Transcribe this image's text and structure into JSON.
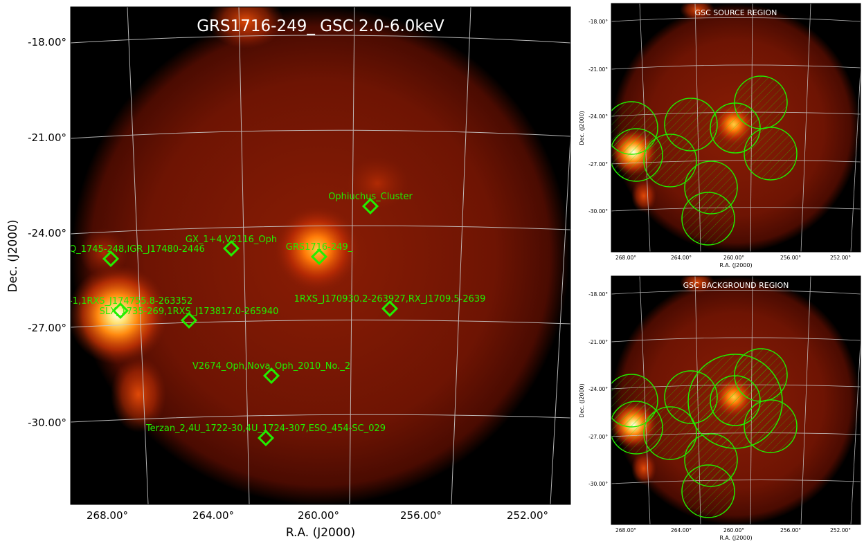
{
  "main": {
    "title": "GRS1716-249_ GSC 2.0-6.0keV",
    "xlabel": "R.A. (J2000)",
    "ylabel": "Dec. (J2000)",
    "xticks": [
      "268.00°",
      "264.00°",
      "260.00°",
      "256.00°",
      "252.00°"
    ],
    "yticks": [
      "-18.00°",
      "-21.00°",
      "-24.00°",
      "-27.00°",
      "-30.00°"
    ],
    "sources": [
      {
        "label": "Ophiuchus_Cluster"
      },
      {
        "label": "GX_1+4,V2116_Oph"
      },
      {
        "label": "GRS1716-249_"
      },
      {
        "label": "Q_1745-248,IGR_J17480-2446"
      },
      {
        "label": "-1,1RXS_J174755.8-263352"
      },
      {
        "label": "SLX_1735-269,1RXS_J173817.0-265940"
      },
      {
        "label": "1RXS_J170930.2-263927,RX_J1709.5-2639"
      },
      {
        "label": "V2674_Oph,Nova_Oph_2010_No._2"
      },
      {
        "label": "Terzan_2,4U_1722-30,4U_1724-307,ESO_454-SC_029"
      }
    ]
  },
  "source_panel": {
    "title": "GSC SOURCE REGION",
    "xlabel": "R.A. (J2000)",
    "ylabel": "Dec. (J2000)",
    "xticks": [
      "268.00°",
      "264.00°",
      "260.00°",
      "256.00°",
      "252.00°"
    ],
    "yticks": [
      "-18.00°",
      "-21.00°",
      "-24.00°",
      "-27.00°",
      "-30.00°"
    ]
  },
  "background_panel": {
    "title": "GSC BACKGROUND REGION",
    "xlabel": "R.A. (J2000)",
    "ylabel": "Dec. (J2000)",
    "xticks": [
      "268.00°",
      "264.00°",
      "260.00°",
      "256.00°",
      "252.00°"
    ],
    "yticks": [
      "-18.00°",
      "-21.00°",
      "-24.00°",
      "-27.00°",
      "-30.00°"
    ]
  },
  "colors": {
    "marker": "#22ee00",
    "region": "#22ee00",
    "grid": "#c8c8c8",
    "background": "#000000"
  }
}
